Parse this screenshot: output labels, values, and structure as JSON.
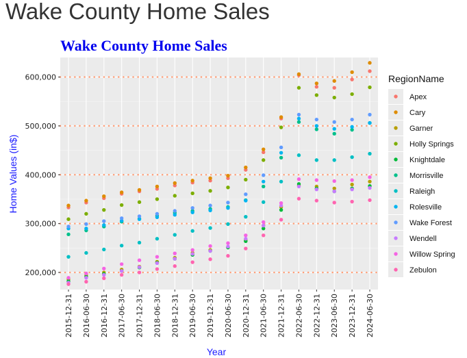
{
  "page_heading": "Wake County Home Sales",
  "chart_data": {
    "type": "scatter",
    "title": "Wake County Home Sales",
    "xlabel": "Year",
    "ylabel": "Home Values (in$)",
    "legend_title": "RegionName",
    "legend_position": "right",
    "grid": true,
    "ylim": [
      165000,
      640000
    ],
    "y_ticks": [
      200000,
      300000,
      400000,
      500000,
      600000
    ],
    "y_tick_labels": [
      "200,000",
      "300,000",
      "400,000",
      "500,000",
      "600,000"
    ],
    "reference_lines": [
      200000,
      300000,
      400000,
      500000,
      600000
    ],
    "reference_line_color": "#ffa07a",
    "x": [
      "2015-12-31",
      "2016-06-30",
      "2016-12-31",
      "2017-06-30",
      "2017-12-31",
      "2018-06-30",
      "2018-12-31",
      "2019-06-30",
      "2019-12-31",
      "2020-06-30",
      "2020-12-31",
      "2021-06-30",
      "2021-12-31",
      "2022-06-30",
      "2022-12-31",
      "2023-06-30",
      "2023-12-31",
      "2024-06-30"
    ],
    "series": [
      {
        "name": "Apex",
        "color": "#F8766D",
        "values": [
          333000,
          343000,
          352000,
          361000,
          366000,
          371000,
          378000,
          384000,
          388000,
          393000,
          410000,
          446000,
          515000,
          604000,
          580000,
          578000,
          595000,
          612000
        ]
      },
      {
        "name": "Cary",
        "color": "#DE8C00",
        "values": [
          337000,
          347000,
          356000,
          364000,
          369000,
          376000,
          383000,
          388000,
          393000,
          398000,
          415000,
          452000,
          518000,
          606000,
          587000,
          592000,
          610000,
          629000
        ]
      },
      {
        "name": "Garner",
        "color": "#B79F00",
        "values": [
          186000,
          194000,
          200000,
          206000,
          212000,
          222000,
          230000,
          240000,
          246000,
          252000,
          266000,
          296000,
          334000,
          378000,
          376000,
          372000,
          380000,
          386000
        ]
      },
      {
        "name": "Holly Springs",
        "color": "#7CAE00",
        "values": [
          309000,
          320000,
          328000,
          338000,
          344000,
          350000,
          357000,
          362000,
          367000,
          374000,
          390000,
          430000,
          497000,
          578000,
          563000,
          558000,
          565000,
          579000
        ]
      },
      {
        "name": "Knightdale",
        "color": "#00BA38",
        "values": [
          182000,
          191000,
          197000,
          203000,
          210000,
          220000,
          228000,
          236000,
          244000,
          251000,
          264000,
          290000,
          328000,
          381000,
          372000,
          366000,
          372000,
          377000
        ]
      },
      {
        "name": "Morrisville",
        "color": "#00C08B",
        "values": [
          278000,
          286000,
          294000,
          304000,
          310000,
          316000,
          322000,
          326000,
          330000,
          334000,
          348000,
          376000,
          435000,
          508000,
          493000,
          484000,
          492000,
          506000
        ]
      },
      {
        "name": "Raleigh",
        "color": "#00BFC4",
        "values": [
          232000,
          240000,
          247000,
          255000,
          261000,
          269000,
          277000,
          285000,
          291000,
          299000,
          314000,
          344000,
          386000,
          440000,
          430000,
          430000,
          436000,
          443000
        ]
      },
      {
        "name": "Rolesville",
        "color": "#00B4F0",
        "values": [
          290000,
          290000,
          297000,
          306000,
          309000,
          313000,
          318000,
          323000,
          327000,
          332000,
          347000,
          386000,
          445000,
          515000,
          500000,
          494000,
          498000,
          506000
        ]
      },
      {
        "name": "Wake Forest",
        "color": "#619CFF",
        "values": [
          294000,
          299000,
          305000,
          311000,
          315000,
          320000,
          326000,
          332000,
          337000,
          343000,
          360000,
          399000,
          456000,
          523000,
          513000,
          508000,
          513000,
          523000
        ]
      },
      {
        "name": "Wendell",
        "color": "#C77CFF",
        "values": [
          179000,
          189000,
          195000,
          203000,
          211000,
          219000,
          228000,
          238000,
          244000,
          253000,
          269000,
          296000,
          337000,
          376000,
          370000,
          366000,
          370000,
          373000
        ]
      },
      {
        "name": "Willow Spring",
        "color": "#F564E3",
        "values": [
          189000,
          198000,
          208000,
          217000,
          225000,
          232000,
          239000,
          246000,
          254000,
          260000,
          276000,
          303000,
          342000,
          391000,
          389000,
          387000,
          389000,
          395000
        ]
      },
      {
        "name": "Zebulon",
        "color": "#FF64B0",
        "values": [
          176000,
          181000,
          188000,
          195000,
          200000,
          207000,
          213000,
          221000,
          227000,
          234000,
          249000,
          276000,
          308000,
          351000,
          347000,
          343000,
          345000,
          348000
        ]
      }
    ]
  }
}
